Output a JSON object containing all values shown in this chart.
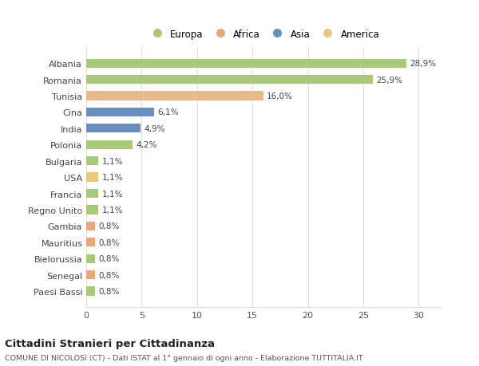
{
  "categories": [
    "Paesi Bassi",
    "Senegal",
    "Bielorussia",
    "Mauritius",
    "Gambia",
    "Regno Unito",
    "Francia",
    "USA",
    "Bulgaria",
    "Polonia",
    "India",
    "Cina",
    "Tunisia",
    "Romania",
    "Albania"
  ],
  "values": [
    0.8,
    0.8,
    0.8,
    0.8,
    0.8,
    1.1,
    1.1,
    1.1,
    1.1,
    4.2,
    4.9,
    6.1,
    16.0,
    25.9,
    28.9
  ],
  "colors": [
    "#a8c87a",
    "#e8a87c",
    "#a8c87a",
    "#e8a87c",
    "#e8a87c",
    "#a8c87a",
    "#a8c87a",
    "#e8c97c",
    "#a8c87a",
    "#a8c87a",
    "#6a8fbf",
    "#6a8fbf",
    "#e8b98a",
    "#a8c87a",
    "#a8c87a"
  ],
  "labels": [
    "0,8%",
    "0,8%",
    "0,8%",
    "0,8%",
    "0,8%",
    "1,1%",
    "1,1%",
    "1,1%",
    "1,1%",
    "4,2%",
    "4,9%",
    "6,1%",
    "16,0%",
    "25,9%",
    "28,9%"
  ],
  "legend": [
    {
      "label": "Europa",
      "color": "#a8c87a"
    },
    {
      "label": "Africa",
      "color": "#e8a87c"
    },
    {
      "label": "Asia",
      "color": "#6a8fbf"
    },
    {
      "label": "America",
      "color": "#e8c97c"
    }
  ],
  "title": "Cittadini Stranieri per Cittadinanza",
  "subtitle": "COMUNE DI NICOLOSI (CT) - Dati ISTAT al 1° gennaio di ogni anno - Elaborazione TUTTITALIA.IT",
  "xlim": [
    0,
    32
  ],
  "xticks": [
    0,
    5,
    10,
    15,
    20,
    25,
    30
  ],
  "background_color": "#ffffff",
  "grid_color": "#e0e0e0",
  "bar_height": 0.55
}
